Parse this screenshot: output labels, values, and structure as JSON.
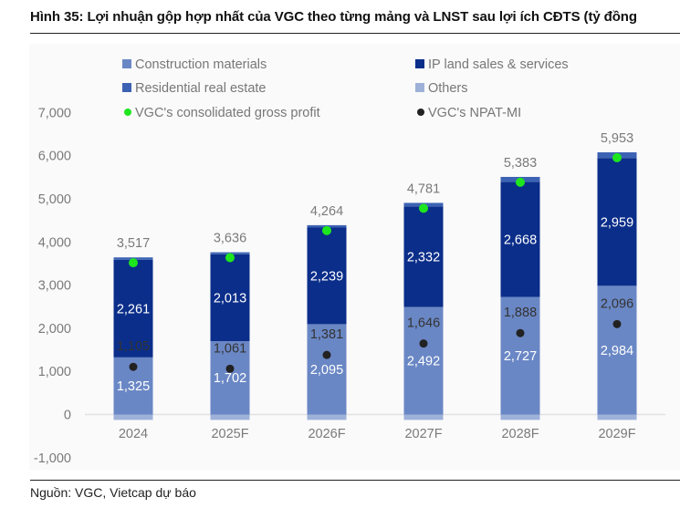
{
  "header": {
    "title": "Hình 35: Lợi nhuận gộp hợp nhất của VGC theo từng mảng và LNST sau lợi ích CĐTS (tỷ đồng"
  },
  "footer": {
    "source": "Nguồn: VGC, Vietcap dự báo"
  },
  "colors": {
    "construction_materials": "#6a87c5",
    "ip_land": "#0b2e8a",
    "residential": "#3c62b3",
    "others": "#9db1d9",
    "gross_profit_dot": "#1ee61e",
    "npat_dot": "#222222",
    "axis_text": "#7a7a7a",
    "npat_label": "#333333",
    "inner_label": "#ffffff",
    "zero_line": "#e2e2e2"
  },
  "legend": {
    "items": [
      {
        "label": "Construction materials",
        "marker": "square",
        "color": "#6a87c5"
      },
      {
        "label": "IP land sales & services",
        "marker": "square",
        "color": "#0b2e8a"
      },
      {
        "label": "Residential real estate",
        "marker": "square",
        "color": "#3c62b3"
      },
      {
        "label": "Others",
        "marker": "square",
        "color": "#9db1d9"
      },
      {
        "label": "VGC's consolidated gross profit",
        "marker": "dot",
        "color": "#1ee61e"
      },
      {
        "label": "VGC's NPAT-MI",
        "marker": "dot",
        "color": "#222222"
      }
    ]
  },
  "chart_data": {
    "type": "bar",
    "subtype": "stacked bar with dot overlays",
    "title": "Hình 35: Lợi nhuận gộp hợp nhất của VGC theo từng mảng và LNST sau lợi ích CĐTS (tỷ đồng",
    "xlabel": "",
    "ylabel": "",
    "unit": "tỷ đồng",
    "categories": [
      "2024",
      "2025F",
      "2026F",
      "2027F",
      "2028F",
      "2029F"
    ],
    "ylim": [
      -1000,
      7000
    ],
    "yticks": [
      -1000,
      0,
      1000,
      2000,
      3000,
      4000,
      5000,
      6000,
      7000
    ],
    "ytick_labels": [
      "-1,000",
      "0",
      "1,000",
      "2,000",
      "3,000",
      "4,000",
      "5,000",
      "6,000",
      "7,000"
    ],
    "grid": false,
    "legend_position": "top",
    "series": [
      {
        "name": "Construction materials",
        "kind": "bar",
        "stack": "gp",
        "values": [
          1325,
          1702,
          2095,
          2492,
          2727,
          2984
        ],
        "labeled": true
      },
      {
        "name": "IP land sales & services",
        "kind": "bar",
        "stack": "gp",
        "values": [
          2261,
          2013,
          2239,
          2332,
          2668,
          2959
        ],
        "labeled": true
      },
      {
        "name": "Residential real estate",
        "kind": "bar",
        "stack": "gp",
        "values": [
          56,
          46,
          55,
          82,
          113,
          135
        ],
        "labeled": false,
        "estimated": true
      },
      {
        "name": "Others",
        "kind": "bar",
        "stack": "gp",
        "values": [
          -125,
          -125,
          -125,
          -125,
          -125,
          -125
        ],
        "labeled": false,
        "estimated": true
      },
      {
        "name": "VGC's consolidated gross profit",
        "kind": "dot",
        "values": [
          3517,
          3636,
          4264,
          4781,
          5383,
          5953
        ],
        "labeled": true
      },
      {
        "name": "VGC's NPAT-MI",
        "kind": "dot",
        "values": [
          1105,
          1061,
          1381,
          1646,
          1888,
          2096
        ],
        "labeled": true
      }
    ]
  }
}
